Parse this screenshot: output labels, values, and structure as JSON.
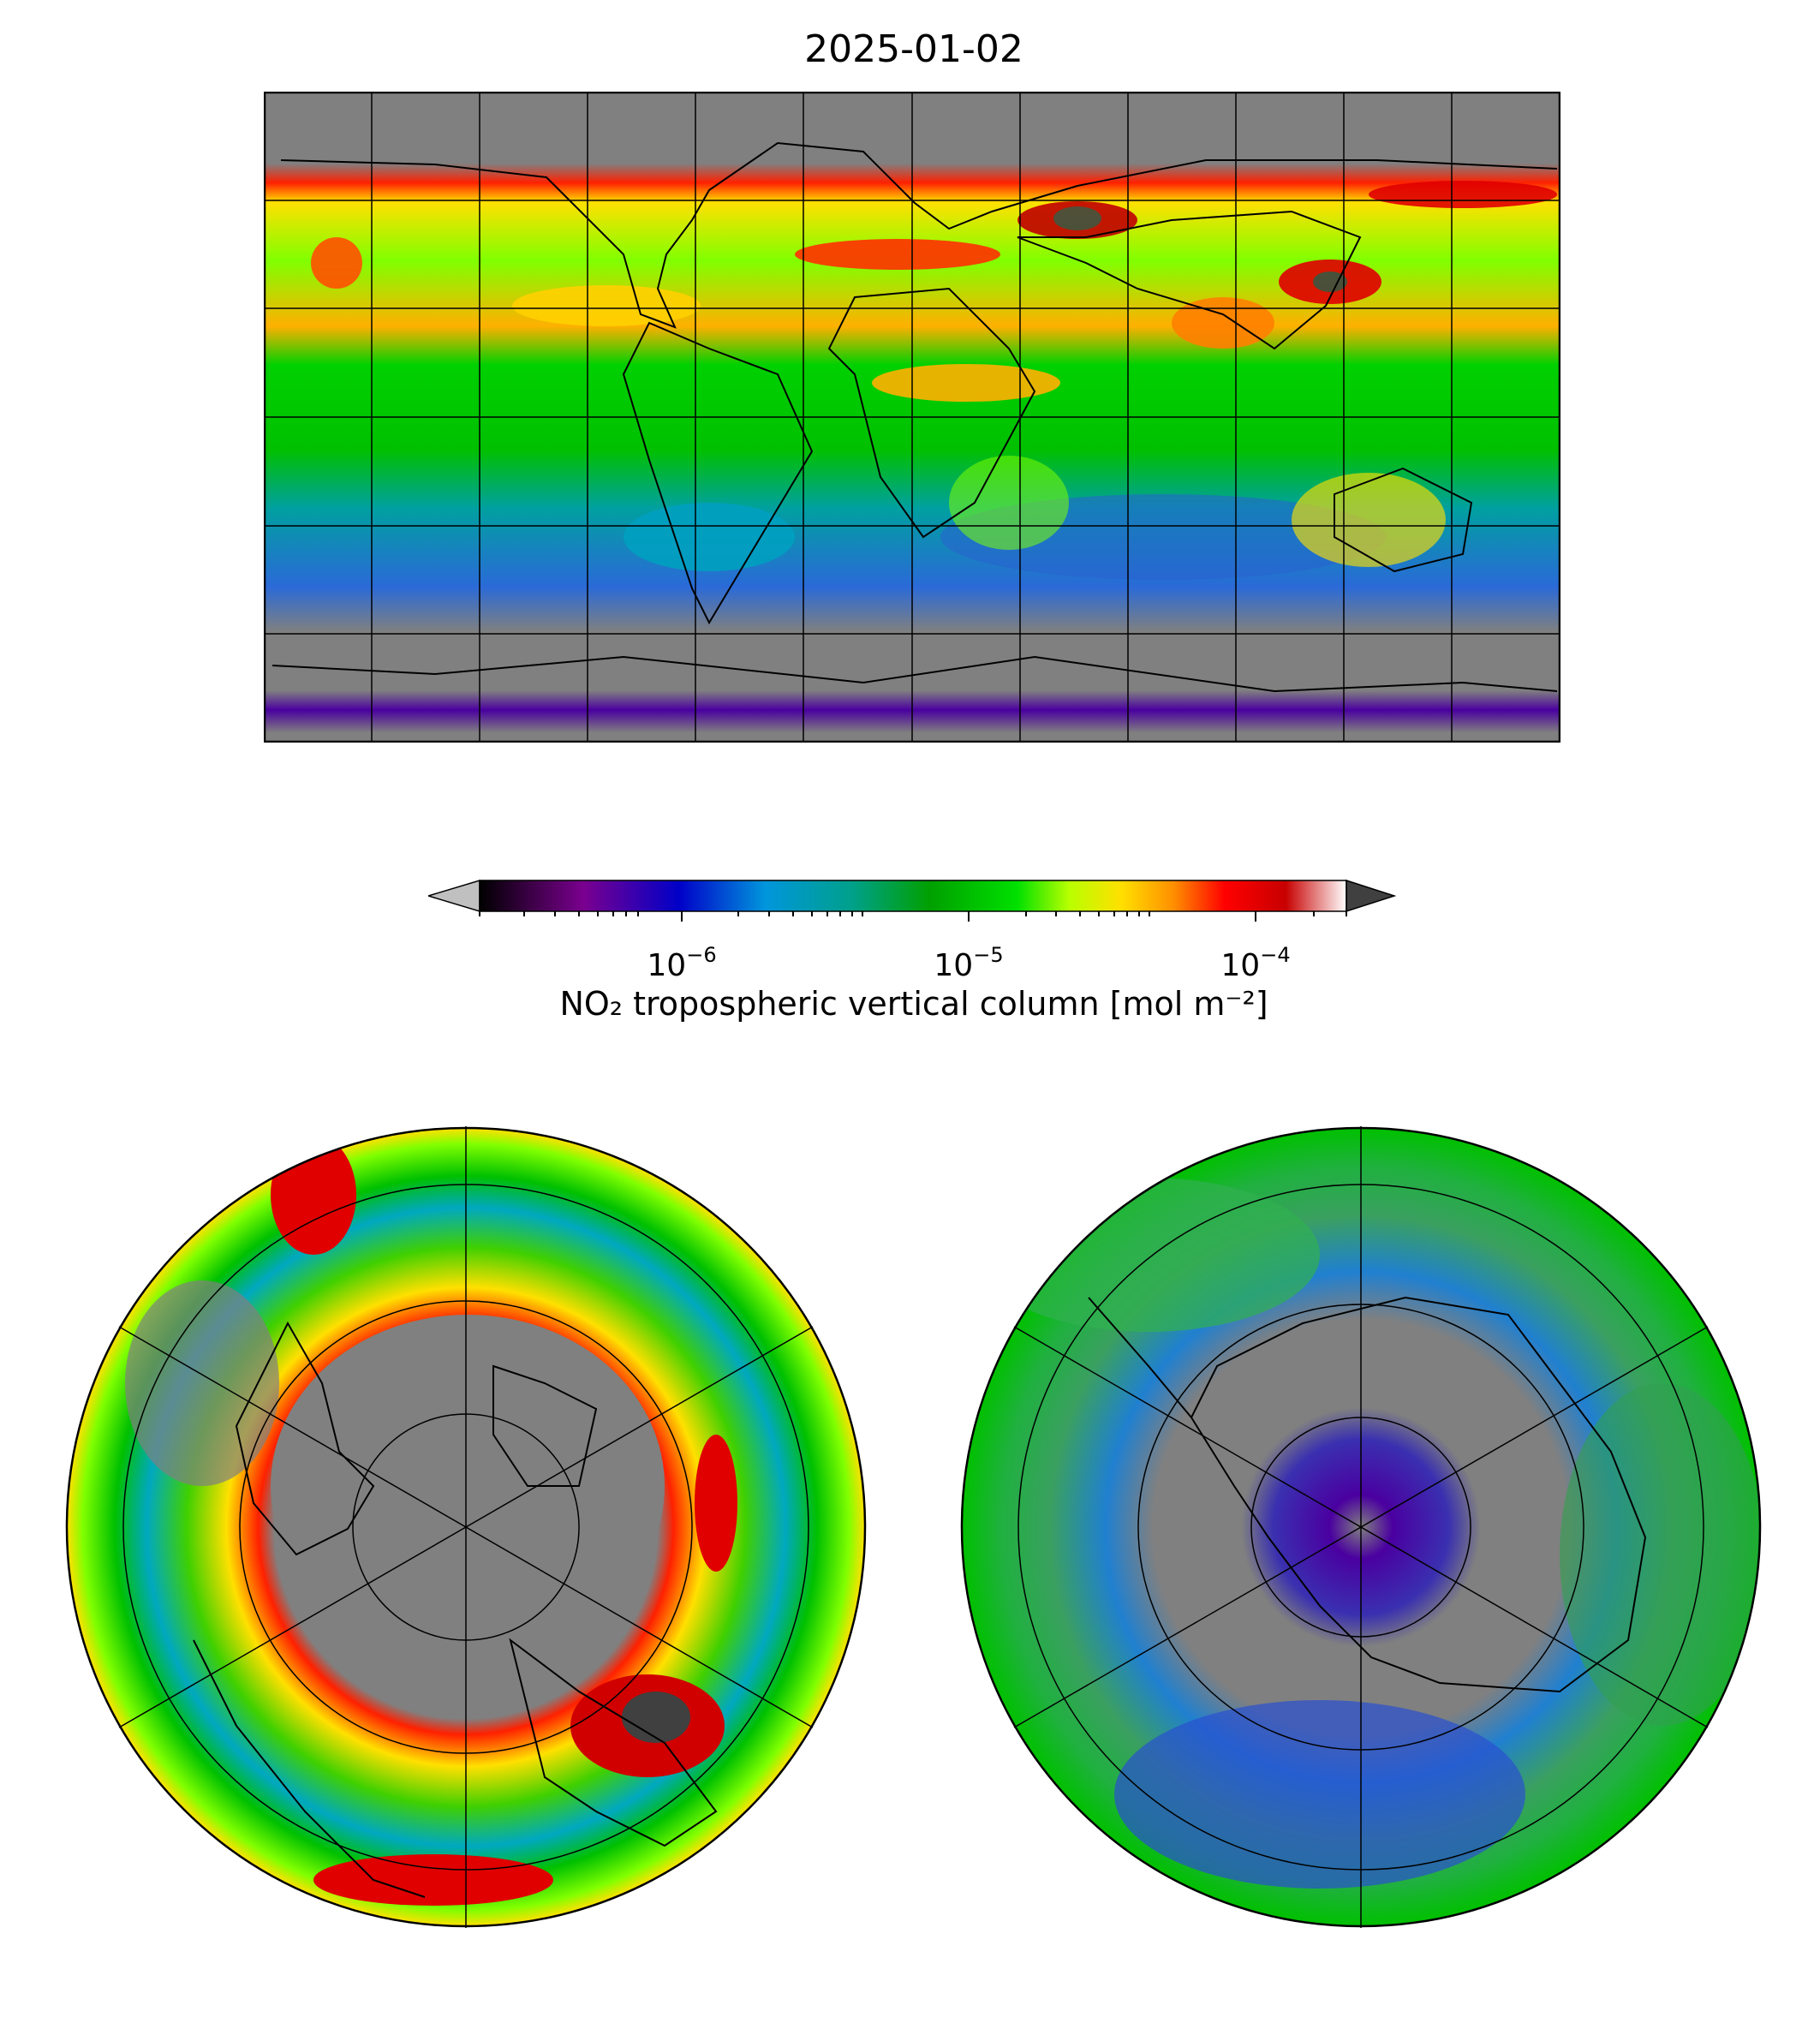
{
  "title": "2025-01-02",
  "colorbar": {
    "label": "NO₂ tropospheric vertical column [mol m⁻²]",
    "scale": "log",
    "range": [
      2e-07,
      0.0002
    ],
    "tick_values": [
      1e-06,
      1e-05,
      0.0001
    ],
    "tick_labels": [
      {
        "base": "10",
        "exp": "−6"
      },
      {
        "base": "10",
        "exp": "−5"
      },
      {
        "base": "10",
        "exp": "−4"
      }
    ],
    "extend": "both",
    "under_color": "#c0c0c0",
    "over_color": "#404040",
    "colors": [
      "#000000",
      "#7a008f",
      "#0000c8",
      "#0096dc",
      "#00a08a",
      "#00a000",
      "#00e000",
      "#b8ff00",
      "#ffe000",
      "#ff9000",
      "#ff0000",
      "#c80000",
      "#ffffff"
    ]
  },
  "maps": {
    "global": {
      "projection": "plate-carree",
      "gridlines": true,
      "no_data_color": "#808080"
    },
    "north_polar": {
      "projection": "north-polar-stereographic",
      "gridlines": true
    },
    "south_polar": {
      "projection": "south-polar-stereographic",
      "gridlines": true
    }
  }
}
